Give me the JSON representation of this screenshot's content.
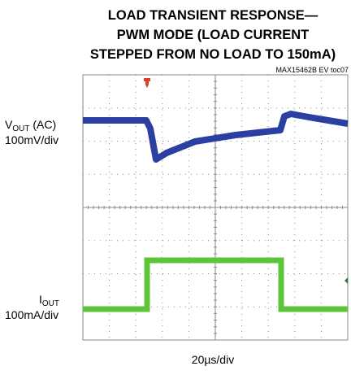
{
  "title": [
    "LOAD TRANSIENT RESPONSE—",
    "PWM MODE (LOAD CURRENT",
    "STEPPED FROM NO LOAD TO 150mA)"
  ],
  "figure_id": "MAX15462B EV toc07",
  "channels": [
    {
      "symbol": "V",
      "subscript": "OUT",
      "suffix": " (AC)",
      "scale": "100mV/div"
    },
    {
      "symbol": "I",
      "subscript": "OUT",
      "scale": "100mA/div"
    }
  ],
  "time_scale": "20µs/div"
}
